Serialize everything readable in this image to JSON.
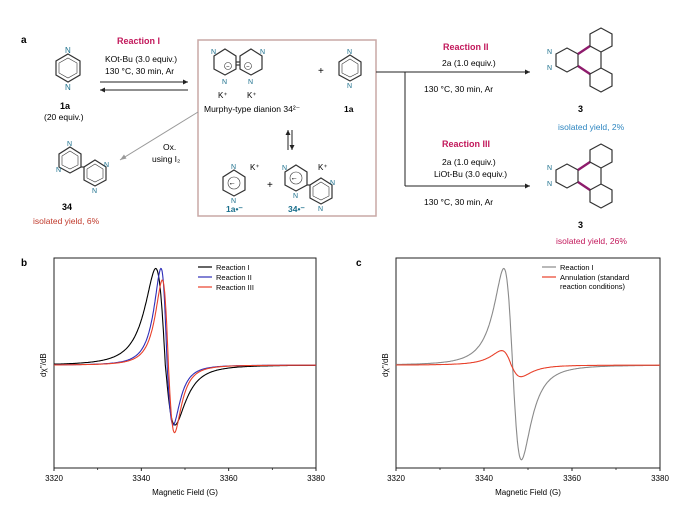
{
  "scheme": {
    "panel_label": "a",
    "reaction1": {
      "title": "Reaction I",
      "cond1": "KOt-Bu (3.0 equiv.)",
      "cond2": "130 °C, 30 min, Ar"
    },
    "reaction2": {
      "title": "Reaction II",
      "reagent": "2a (1.0 equiv.)",
      "cond": "130 °C, 30 min, Ar",
      "product": "3",
      "yield": "isolated yield, 2%"
    },
    "reaction3": {
      "title": "Reaction III",
      "reagent": "2a (1.0 equiv.)",
      "base": "LiOt-Bu (3.0 equiv.)",
      "cond": "130 °C, 30 min, Ar",
      "product": "3",
      "yield": "isolated yield, 26%"
    },
    "sm": {
      "label": "1a",
      "equiv": "(20 equiv.)"
    },
    "dianion": {
      "name": "Murphy-type dianion 34²⁻",
      "k": "K⁺"
    },
    "plus": "+",
    "center_1a": "1a",
    "radical_1a": "1a•⁻",
    "radical_34": "34•⁻",
    "ox": {
      "line1": "Ox.",
      "line2": "using I₂"
    },
    "bipyrazine": {
      "label": "34",
      "yield": "isolated yield, 6%"
    },
    "colors": {
      "accent": "#c2185b",
      "teal": "#1a6f8c",
      "box": "#c9a9a6",
      "yield_blue": "#2e86c1",
      "yield_red": "#c0392b"
    }
  },
  "chart_data": [
    {
      "panel_label": "b",
      "type": "line",
      "xlabel": "Magnetic Field (G)",
      "ylabel": "dχ''/dB",
      "xlim": [
        3320,
        3380
      ],
      "xticks": [
        "3320",
        "3340",
        "3360",
        "3380"
      ],
      "legend_position": "top-right",
      "series": [
        {
          "name": "Reaction I",
          "color": "#000000",
          "center": 3345.5,
          "width": 2.2,
          "amplitude": 1.0,
          "ends": [
            0.0,
            0.0
          ],
          "values_peak_trough": [
            1.0,
            -0.62
          ]
        },
        {
          "name": "Reaction II",
          "color": "#2e2eb8",
          "center": 3345.9,
          "width": 1.4,
          "amplitude": 1.0,
          "ends": [
            0.0,
            0.0
          ],
          "values_peak_trough": [
            1.0,
            -0.62
          ]
        },
        {
          "name": "Reaction III",
          "color": "#e8402a",
          "center": 3346.2,
          "width": 1.4,
          "amplitude": 0.88,
          "ends": [
            0.0,
            0.0
          ],
          "values_peak_trough": [
            0.88,
            -0.7
          ]
        }
      ]
    },
    {
      "panel_label": "c",
      "type": "line",
      "xlabel": "Magnetic Field (G)",
      "ylabel": "dχ''/dB",
      "xlim": [
        3320,
        3380
      ],
      "xticks": [
        "3320",
        "3340",
        "3360",
        "3380"
      ],
      "legend_position": "top-right",
      "series": [
        {
          "name": "Reaction I",
          "color": "#8a8a8a",
          "center": 3346.5,
          "width": 2.0,
          "amplitude": 1.0,
          "ends": [
            0.0,
            0.0
          ],
          "values_peak_trough": [
            1.0,
            -0.98
          ]
        },
        {
          "name": "Annulation (standard reaction conditions)",
          "legend_line1": "Annulation (standard",
          "legend_line2": "reaction conditions)",
          "color": "#e8402a",
          "center": 3346.2,
          "width": 2.2,
          "amplitude": 0.15,
          "ends": [
            0.0,
            0.0
          ],
          "values_peak_trough": [
            0.15,
            -0.12
          ]
        }
      ]
    }
  ]
}
